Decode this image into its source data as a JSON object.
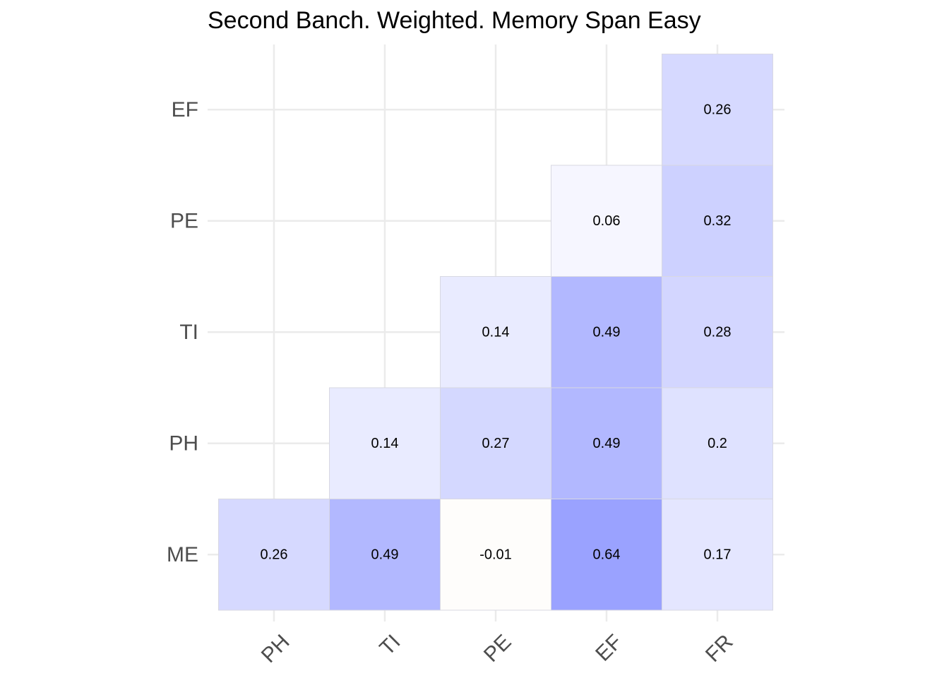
{
  "chart_data": {
    "type": "heatmap",
    "title": "Second Banch. Weighted. Memory Span Easy",
    "xlabel": "",
    "ylabel": "",
    "x_categories": [
      "PH",
      "TI",
      "PE",
      "EF",
      "FR"
    ],
    "y_categories": [
      "ME",
      "PH",
      "TI",
      "PE",
      "EF"
    ],
    "cells": [
      {
        "x": "PH",
        "y": "ME",
        "value": 0.26,
        "label": "0.26"
      },
      {
        "x": "TI",
        "y": "ME",
        "value": 0.49,
        "label": "0.49"
      },
      {
        "x": "PE",
        "y": "ME",
        "value": -0.01,
        "label": "-0.01"
      },
      {
        "x": "EF",
        "y": "ME",
        "value": 0.64,
        "label": "0.64"
      },
      {
        "x": "FR",
        "y": "ME",
        "value": 0.17,
        "label": "0.17"
      },
      {
        "x": "TI",
        "y": "PH",
        "value": 0.14,
        "label": "0.14"
      },
      {
        "x": "PE",
        "y": "PH",
        "value": 0.27,
        "label": "0.27"
      },
      {
        "x": "EF",
        "y": "PH",
        "value": 0.49,
        "label": "0.49"
      },
      {
        "x": "FR",
        "y": "PH",
        "value": 0.2,
        "label": "0.2"
      },
      {
        "x": "PE",
        "y": "TI",
        "value": 0.14,
        "label": "0.14"
      },
      {
        "x": "EF",
        "y": "TI",
        "value": 0.49,
        "label": "0.49"
      },
      {
        "x": "FR",
        "y": "TI",
        "value": 0.28,
        "label": "0.28"
      },
      {
        "x": "EF",
        "y": "PE",
        "value": 0.06,
        "label": "0.06"
      },
      {
        "x": "FR",
        "y": "PE",
        "value": 0.32,
        "label": "0.32"
      },
      {
        "x": "FR",
        "y": "EF",
        "value": 0.26,
        "label": "0.26"
      }
    ],
    "color_low": "#ffffff",
    "color_high": "#9aa2ff",
    "grid": true,
    "legend": "none",
    "x_tick_rotation": "45 degrees"
  }
}
